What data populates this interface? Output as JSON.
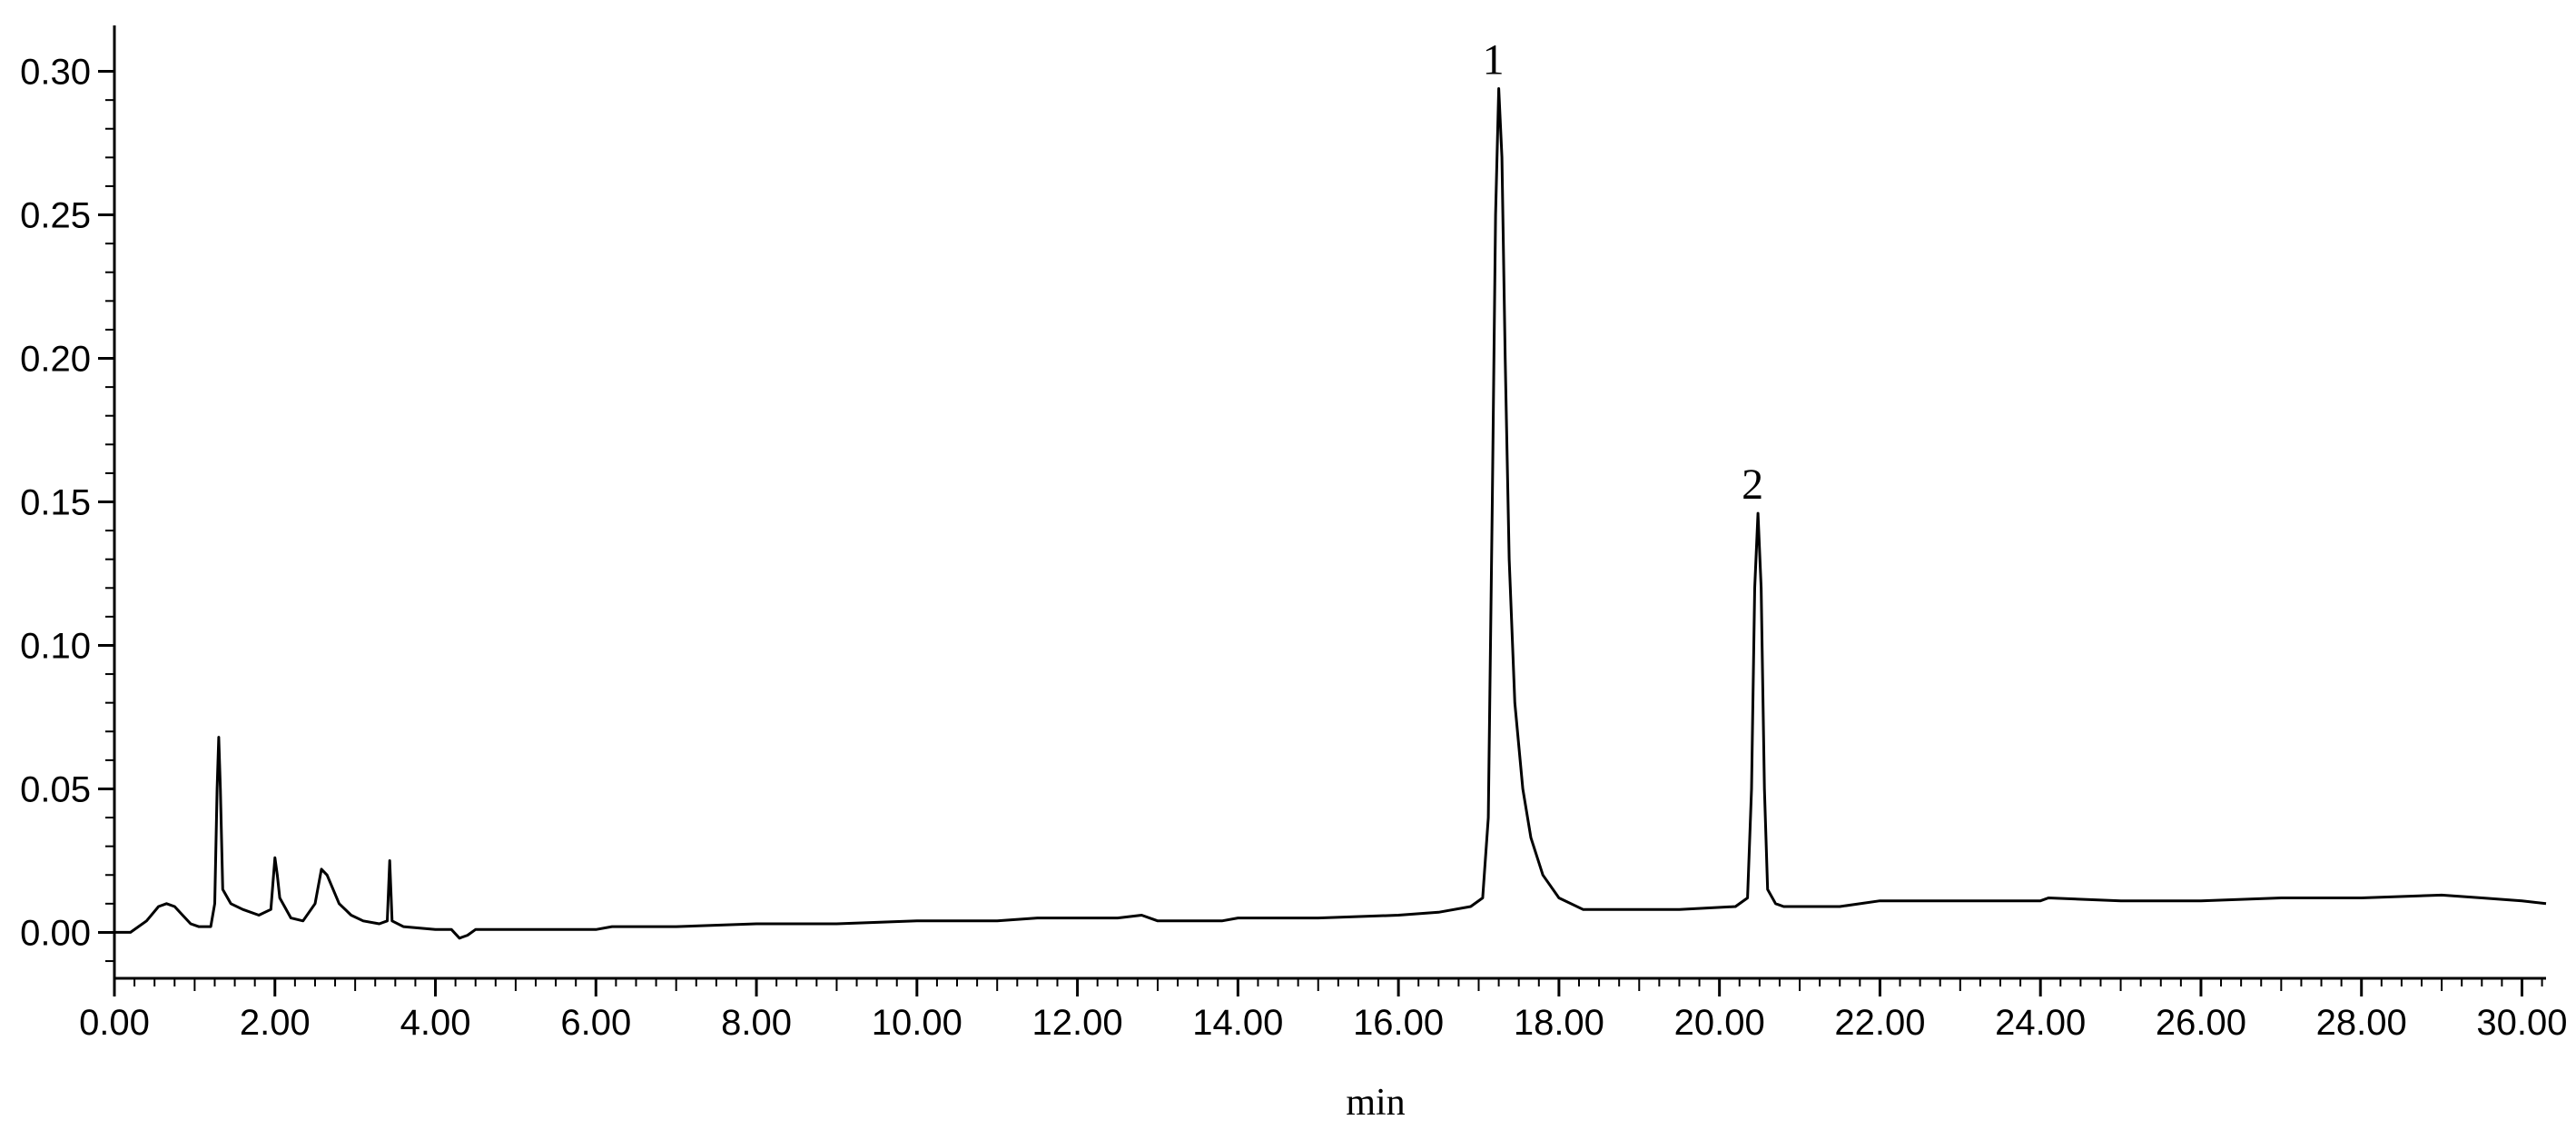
{
  "chart_data": {
    "type": "line",
    "title": "",
    "xlabel": "min",
    "ylabel": "",
    "xlim": [
      0,
      30.3
    ],
    "ylim": [
      -0.016,
      0.316
    ],
    "x_ticks": [
      "0.00",
      "2.00",
      "4.00",
      "6.00",
      "8.00",
      "10.00",
      "12.00",
      "14.00",
      "16.00",
      "18.00",
      "20.00",
      "22.00",
      "24.00",
      "26.00",
      "28.00",
      "30.00"
    ],
    "y_ticks": [
      "0.00",
      "0.05",
      "0.10",
      "0.15",
      "0.20",
      "0.25",
      "0.30"
    ],
    "grid": false,
    "legend": "none",
    "series": [
      {
        "points": [
          [
            0.0,
            0.0
          ],
          [
            0.2,
            0.0
          ],
          [
            0.4,
            0.004
          ],
          [
            0.55,
            0.009
          ],
          [
            0.65,
            0.01
          ],
          [
            0.75,
            0.009
          ],
          [
            0.85,
            0.006
          ],
          [
            0.95,
            0.003
          ],
          [
            1.05,
            0.002
          ],
          [
            1.2,
            0.002
          ],
          [
            1.25,
            0.01
          ],
          [
            1.28,
            0.05
          ],
          [
            1.3,
            0.068
          ],
          [
            1.32,
            0.05
          ],
          [
            1.35,
            0.015
          ],
          [
            1.45,
            0.01
          ],
          [
            1.6,
            0.008
          ],
          [
            1.8,
            0.006
          ],
          [
            1.95,
            0.008
          ],
          [
            2.0,
            0.026
          ],
          [
            2.03,
            0.02
          ],
          [
            2.06,
            0.012
          ],
          [
            2.2,
            0.005
          ],
          [
            2.35,
            0.004
          ],
          [
            2.5,
            0.01
          ],
          [
            2.58,
            0.022
          ],
          [
            2.65,
            0.02
          ],
          [
            2.8,
            0.01
          ],
          [
            2.95,
            0.006
          ],
          [
            3.1,
            0.004
          ],
          [
            3.3,
            0.003
          ],
          [
            3.4,
            0.004
          ],
          [
            3.43,
            0.025
          ],
          [
            3.46,
            0.004
          ],
          [
            3.6,
            0.002
          ],
          [
            4.0,
            0.001
          ],
          [
            4.2,
            0.001
          ],
          [
            4.3,
            -0.002
          ],
          [
            4.4,
            -0.001
          ],
          [
            4.5,
            0.001
          ],
          [
            5.0,
            0.001
          ],
          [
            6.0,
            0.001
          ],
          [
            6.2,
            0.002
          ],
          [
            7.0,
            0.002
          ],
          [
            8.0,
            0.003
          ],
          [
            9.0,
            0.003
          ],
          [
            10.0,
            0.004
          ],
          [
            10.5,
            0.004
          ],
          [
            11.0,
            0.004
          ],
          [
            11.5,
            0.005
          ],
          [
            12.5,
            0.005
          ],
          [
            12.8,
            0.006
          ],
          [
            13.0,
            0.004
          ],
          [
            13.8,
            0.004
          ],
          [
            14.0,
            0.005
          ],
          [
            15.0,
            0.005
          ],
          [
            16.0,
            0.006
          ],
          [
            16.5,
            0.007
          ],
          [
            16.9,
            0.009
          ],
          [
            17.05,
            0.012
          ],
          [
            17.12,
            0.04
          ],
          [
            17.17,
            0.15
          ],
          [
            17.21,
            0.25
          ],
          [
            17.25,
            0.294
          ],
          [
            17.29,
            0.27
          ],
          [
            17.33,
            0.2
          ],
          [
            17.38,
            0.13
          ],
          [
            17.45,
            0.08
          ],
          [
            17.55,
            0.05
          ],
          [
            17.65,
            0.033
          ],
          [
            17.8,
            0.02
          ],
          [
            18.0,
            0.012
          ],
          [
            18.3,
            0.008
          ],
          [
            18.8,
            0.008
          ],
          [
            19.5,
            0.008
          ],
          [
            20.2,
            0.009
          ],
          [
            20.35,
            0.012
          ],
          [
            20.4,
            0.05
          ],
          [
            20.44,
            0.12
          ],
          [
            20.48,
            0.146
          ],
          [
            20.52,
            0.12
          ],
          [
            20.56,
            0.05
          ],
          [
            20.6,
            0.015
          ],
          [
            20.7,
            0.01
          ],
          [
            20.8,
            0.009
          ],
          [
            21.5,
            0.009
          ],
          [
            22.0,
            0.011
          ],
          [
            23.0,
            0.011
          ],
          [
            24.0,
            0.011
          ],
          [
            24.1,
            0.012
          ],
          [
            25.0,
            0.011
          ],
          [
            26.0,
            0.011
          ],
          [
            27.0,
            0.012
          ],
          [
            28.0,
            0.012
          ],
          [
            29.0,
            0.013
          ],
          [
            29.5,
            0.012
          ],
          [
            30.0,
            0.011
          ],
          [
            30.3,
            0.01
          ]
        ]
      }
    ],
    "annotations": [
      {
        "text": "1",
        "x": 17.25,
        "y": 0.294
      },
      {
        "text": "2",
        "x": 20.48,
        "y": 0.146
      }
    ]
  }
}
